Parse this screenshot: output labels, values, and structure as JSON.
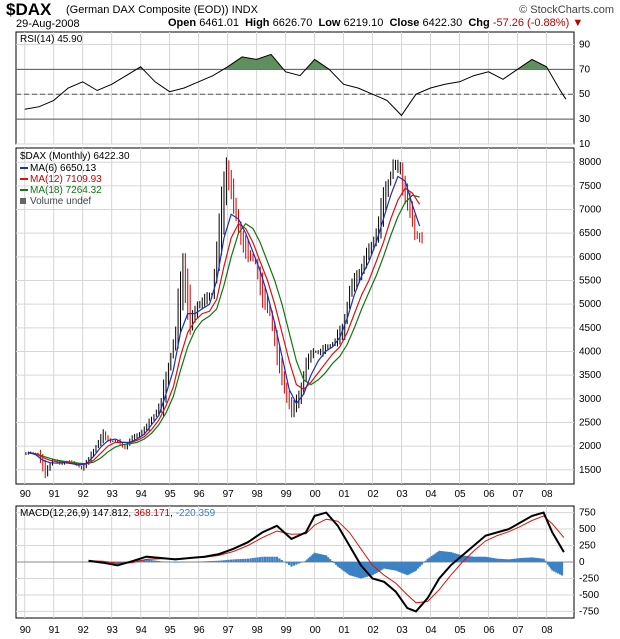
{
  "header": {
    "symbol": "$DAX",
    "name": "(German DAX Composite (EOD))",
    "exchange": "INDX",
    "brand": "© StockCharts.com",
    "date": "29-Aug-2008",
    "open_label": "Open",
    "open": "6461.01",
    "high_label": "High",
    "high": "6626.70",
    "low_label": "Low",
    "low": "6219.10",
    "close_label": "Close",
    "close": "6422.30",
    "chg_label": "Chg",
    "chg": "-57.26 (-0.88%)",
    "chg_arrow": "▼"
  },
  "colors": {
    "up": "#000000",
    "down": "#cc0000",
    "ma6": "#1f2fb5",
    "ma12": "#dd1111",
    "ma18": "#117711",
    "rsi_fill": "#5f8f5f",
    "hist": "#3a82c4",
    "grid": "#d6d6d6"
  },
  "chart_data": [
    {
      "type": "line",
      "title": "RSI(14) 45.90",
      "ylim": [
        10,
        100
      ],
      "yticks": [
        10,
        30,
        50,
        70,
        90
      ],
      "reference_lines": [
        30,
        50,
        70
      ],
      "x": [
        1990.0,
        1990.5,
        1991.0,
        1991.5,
        1992.0,
        1992.5,
        1993.0,
        1993.5,
        1994.0,
        1994.5,
        1995.0,
        1995.5,
        1996.0,
        1996.5,
        1997.0,
        1997.5,
        1998.0,
        1998.5,
        1999.0,
        1999.5,
        2000.0,
        2000.5,
        2001.0,
        2001.5,
        2002.0,
        2002.5,
        2003.0,
        2003.5,
        2004.0,
        2004.5,
        2005.0,
        2005.5,
        2006.0,
        2006.5,
        2007.0,
        2007.5,
        2008.0,
        2008.5,
        2008.67
      ],
      "values": [
        38,
        40,
        45,
        55,
        60,
        53,
        58,
        65,
        72,
        60,
        52,
        55,
        60,
        65,
        72,
        80,
        78,
        82,
        68,
        65,
        78,
        70,
        58,
        55,
        50,
        45,
        33,
        50,
        55,
        58,
        60,
        65,
        68,
        62,
        70,
        78,
        72,
        52,
        46
      ]
    },
    {
      "type": "candlestick",
      "title": "$DAX (Monthly) 6422.30",
      "legend": [
        {
          "name": "MA(6)",
          "value": "6650.13"
        },
        {
          "name": "MA(12)",
          "value": "7109.93"
        },
        {
          "name": "MA(18)",
          "value": "7264.32"
        },
        {
          "name": "Volume undef",
          "value": ""
        }
      ],
      "ylim": [
        1200,
        8300
      ],
      "yticks": [
        1500,
        2000,
        2500,
        3000,
        3500,
        4000,
        4500,
        5000,
        5500,
        6000,
        6500,
        7000,
        7500,
        8000
      ],
      "x_start": 1990.0,
      "x_step": 0.25,
      "close": [
        1850,
        1850,
        1450,
        1700,
        1640,
        1680,
        1620,
        1550,
        1700,
        2000,
        2250,
        2100,
        2100,
        2000,
        2150,
        2280,
        2400,
        2650,
        2900,
        3700,
        4300,
        5950,
        4500,
        5000,
        5100,
        5200,
        6500,
        7950,
        7000,
        6500,
        6000,
        5900,
        5200,
        4800,
        3900,
        3300,
        2650,
        3100,
        3700,
        4000,
        4000,
        4100,
        4200,
        4500,
        5200,
        5600,
        5900,
        6200,
        6700,
        7400,
        7900,
        7900,
        7100,
        6500,
        6422
      ],
      "ma6": [
        1870,
        1820,
        1700,
        1650,
        1640,
        1650,
        1630,
        1600,
        1630,
        1780,
        1980,
        2120,
        2150,
        2080,
        2080,
        2150,
        2250,
        2450,
        2650,
        3100,
        3600,
        4400,
        4800,
        4800,
        4900,
        5000,
        5500,
        6400,
        6900,
        6800,
        6500,
        6100,
        5700,
        5200,
        4600,
        3900,
        3200,
        2900,
        3100,
        3500,
        3800,
        4000,
        4100,
        4300,
        4700,
        5200,
        5600,
        5900,
        6300,
        6800,
        7300,
        7700,
        7600,
        7100,
        6650
      ],
      "ma12": [
        1860,
        1840,
        1760,
        1700,
        1670,
        1660,
        1640,
        1620,
        1620,
        1700,
        1850,
        2000,
        2080,
        2080,
        2070,
        2120,
        2200,
        2350,
        2550,
        2850,
        3250,
        3900,
        4400,
        4650,
        4800,
        4850,
        5100,
        5800,
        6400,
        6700,
        6600,
        6300,
        5900,
        5500,
        5000,
        4400,
        3800,
        3300,
        3200,
        3350,
        3550,
        3750,
        3950,
        4100,
        4400,
        4800,
        5200,
        5500,
        5900,
        6300,
        6800,
        7200,
        7450,
        7350,
        7110
      ],
      "ma18": [
        1850,
        1840,
        1790,
        1740,
        1700,
        1680,
        1660,
        1640,
        1630,
        1660,
        1750,
        1880,
        1980,
        2030,
        2050,
        2080,
        2150,
        2270,
        2450,
        2700,
        3050,
        3600,
        4100,
        4450,
        4650,
        4750,
        4900,
        5400,
        6000,
        6500,
        6700,
        6600,
        6300,
        5900,
        5500,
        5000,
        4400,
        3800,
        3400,
        3300,
        3400,
        3550,
        3750,
        3900,
        4150,
        4500,
        4900,
        5250,
        5600,
        6000,
        6450,
        6850,
        7150,
        7300,
        7264
      ]
    },
    {
      "type": "line",
      "title": "MACD(12,26,9)",
      "macd_value": "147.812",
      "signal_value": "368.171",
      "hist_value": "-220.359",
      "ylim": [
        -850,
        850
      ],
      "yticks": [
        -750,
        -500,
        -250,
        0,
        250,
        500,
        750
      ],
      "x": [
        1992.2,
        1992.7,
        1993.2,
        1993.7,
        1994.2,
        1994.7,
        1995.2,
        1995.7,
        1996.2,
        1996.7,
        1997.2,
        1997.7,
        1998.2,
        1998.7,
        1999.2,
        1999.7,
        2000.0,
        2000.4,
        2000.8,
        2001.2,
        2001.6,
        2002.0,
        2002.4,
        2002.8,
        2003.2,
        2003.5,
        2003.9,
        2004.3,
        2004.7,
        2005.1,
        2005.5,
        2005.9,
        2006.3,
        2006.7,
        2007.1,
        2007.5,
        2007.9,
        2008.2,
        2008.6
      ],
      "macd": [
        20,
        -10,
        -50,
        10,
        80,
        60,
        40,
        60,
        80,
        120,
        200,
        300,
        450,
        550,
        350,
        450,
        700,
        750,
        550,
        250,
        -50,
        -250,
        -300,
        -450,
        -700,
        -750,
        -550,
        -250,
        -50,
        100,
        250,
        400,
        450,
        500,
        600,
        700,
        750,
        450,
        150
      ],
      "signal": [
        20,
        10,
        -20,
        -10,
        40,
        50,
        50,
        60,
        70,
        100,
        160,
        250,
        370,
        470,
        420,
        430,
        560,
        650,
        620,
        450,
        200,
        -50,
        -200,
        -320,
        -500,
        -620,
        -600,
        -420,
        -200,
        0,
        170,
        320,
        400,
        460,
        540,
        630,
        700,
        580,
        370
      ],
      "hist": [
        0,
        -20,
        -30,
        20,
        40,
        10,
        -10,
        0,
        10,
        20,
        40,
        50,
        80,
        80,
        -70,
        20,
        140,
        100,
        -70,
        -200,
        -250,
        -200,
        -100,
        -130,
        -200,
        -130,
        50,
        170,
        150,
        100,
        80,
        80,
        50,
        40,
        60,
        70,
        50,
        -130,
        -220
      ]
    }
  ],
  "xaxis": {
    "labels": [
      "90",
      "91",
      "92",
      "93",
      "94",
      "95",
      "96",
      "97",
      "98",
      "99",
      "00",
      "01",
      "02",
      "03",
      "04",
      "05",
      "06",
      "07",
      "08"
    ],
    "years": [
      1990,
      1991,
      1992,
      1993,
      1994,
      1995,
      1996,
      1997,
      1998,
      1999,
      2000,
      2001,
      2002,
      2003,
      2004,
      2005,
      2006,
      2007,
      2008
    ]
  }
}
